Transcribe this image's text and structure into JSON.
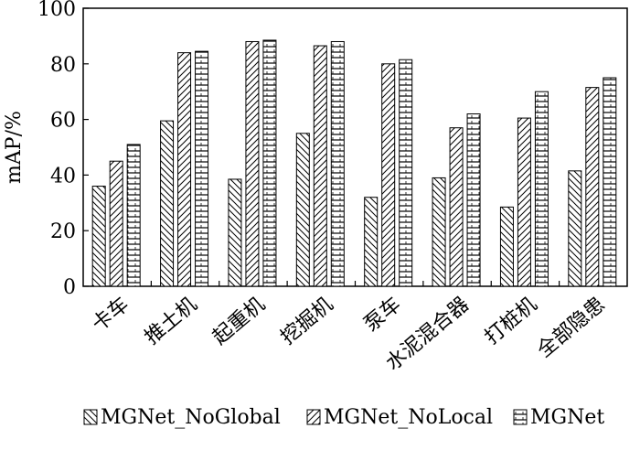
{
  "chart_data": {
    "type": "bar",
    "ylabel": "mAP/%",
    "xlabel": "",
    "title": "",
    "ylim": [
      0,
      100
    ],
    "yticks": [
      0,
      20,
      40,
      60,
      80,
      100
    ],
    "grid": false,
    "legend_position": "bottom",
    "categories": [
      "卡车",
      "推土机",
      "起重机",
      "挖掘机",
      "泵车",
      "水泥混合器",
      "打桩机",
      "全部隐患"
    ],
    "series": [
      {
        "name": "MGNet_NoGlobal",
        "pattern": "diagonal-backslash",
        "values": [
          36,
          59.5,
          38.5,
          55,
          32,
          39,
          28.5,
          41.5
        ]
      },
      {
        "name": "MGNet_NoLocal",
        "pattern": "diagonal-slash",
        "values": [
          45,
          84,
          88,
          86.5,
          80,
          57,
          60.5,
          71.5
        ]
      },
      {
        "name": "MGNet",
        "pattern": "horizontal-lines",
        "values": [
          51,
          84.5,
          88.5,
          88,
          81.5,
          62,
          70,
          75
        ]
      }
    ],
    "colors": {
      "stroke": "#000000",
      "fill": "#ffffff"
    }
  }
}
